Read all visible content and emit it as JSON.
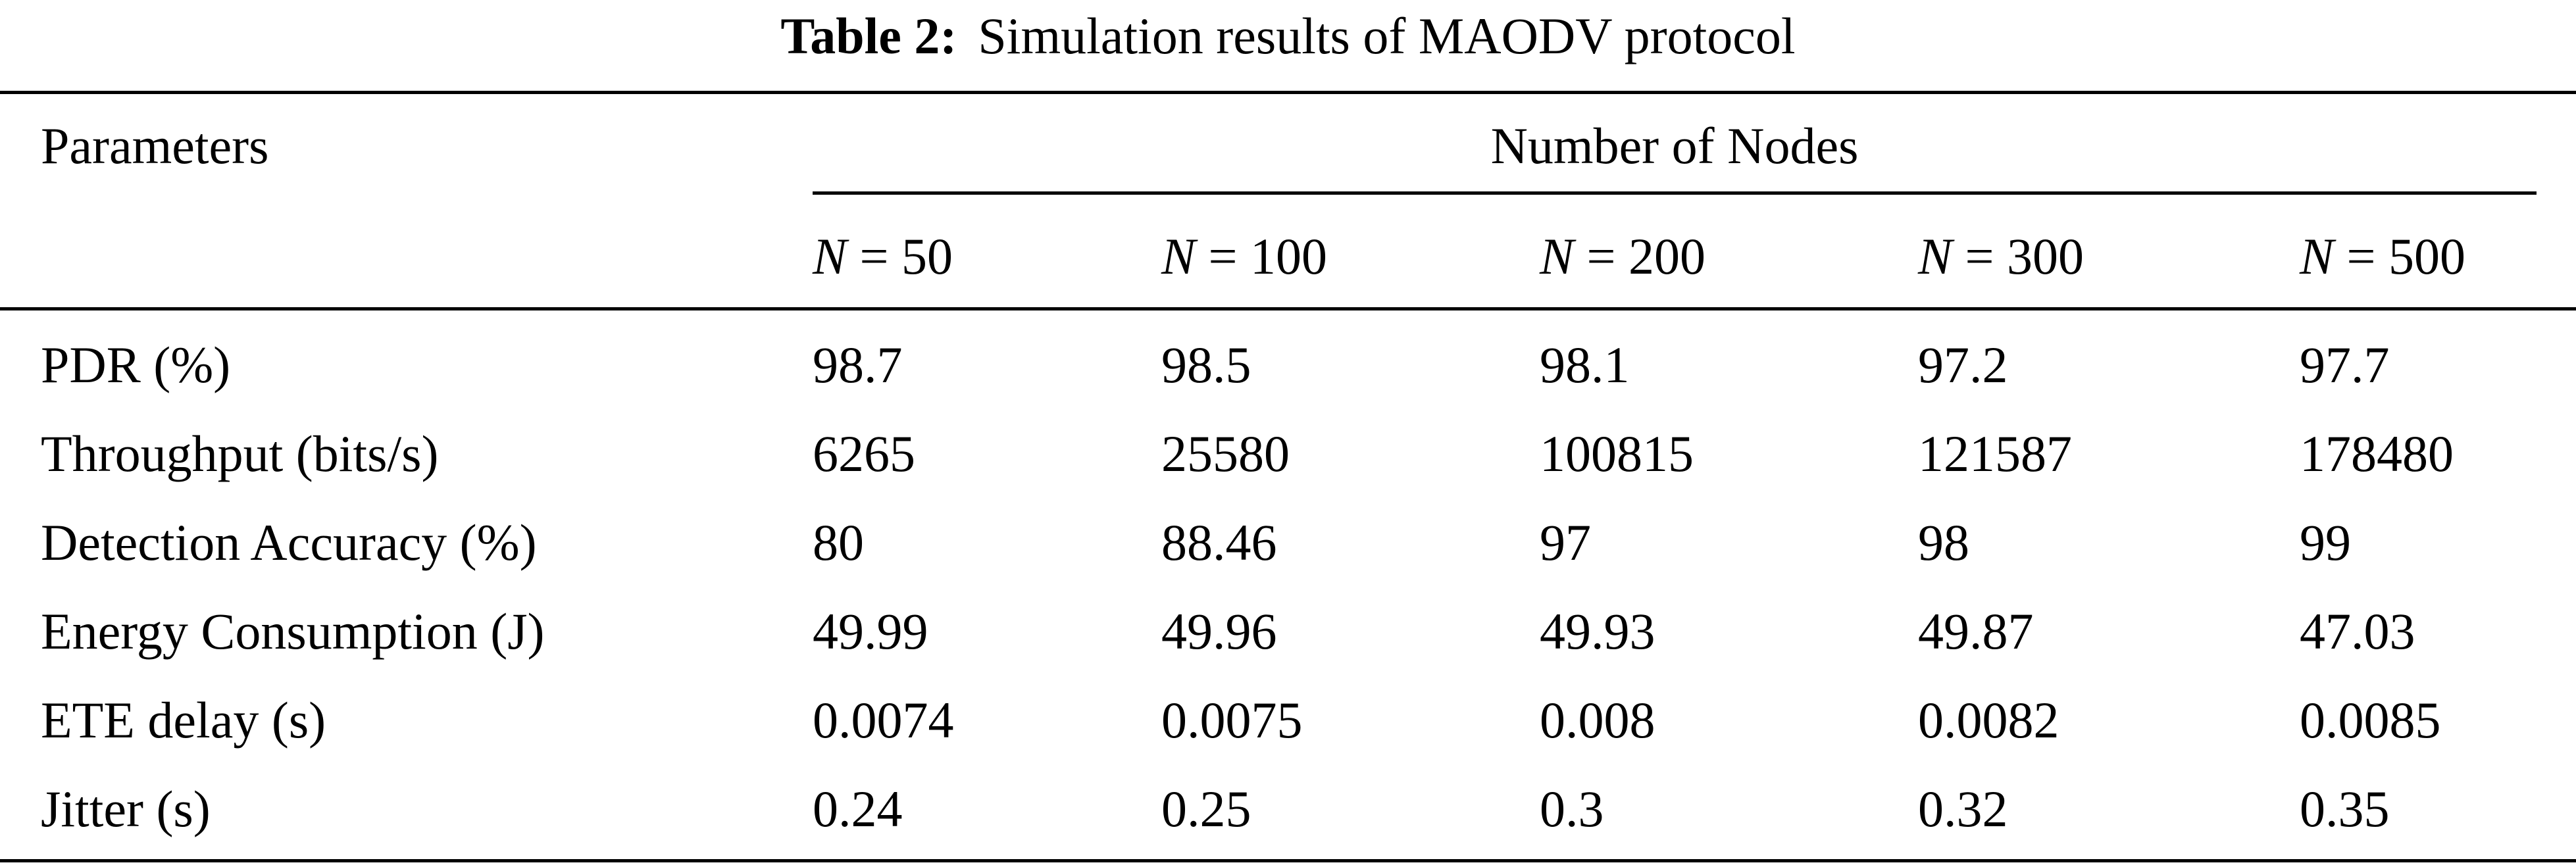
{
  "caption": {
    "label": "Table 2:",
    "text": "Simulation results of MAODV protocol"
  },
  "header": {
    "parameters": "Parameters",
    "group": "Number of Nodes",
    "node_columns": [
      {
        "var": "N",
        "value": " = 50"
      },
      {
        "var": "N",
        "value": " = 100"
      },
      {
        "var": "N",
        "value": " = 200"
      },
      {
        "var": "N",
        "value": " = 300"
      },
      {
        "var": "N",
        "value": " = 500"
      }
    ]
  },
  "rows": [
    {
      "parameter": "PDR (%)",
      "values": [
        "98.7",
        "98.5",
        "98.1",
        "97.2",
        "97.7"
      ]
    },
    {
      "parameter": "Throughput (bits/s)",
      "values": [
        "6265",
        "25580",
        "100815",
        "121587",
        "178480"
      ]
    },
    {
      "parameter": "Detection Accuracy (%)",
      "values": [
        "80",
        "88.46",
        "97",
        "98",
        "99"
      ]
    },
    {
      "parameter": "Energy Consumption (J)",
      "values": [
        "49.99",
        "49.96",
        "49.93",
        "49.87",
        "47.03"
      ]
    },
    {
      "parameter": "ETE delay (s)",
      "values": [
        "0.0074",
        "0.0075",
        "0.008",
        "0.0082",
        "0.0085"
      ]
    },
    {
      "parameter": "Jitter (s)",
      "values": [
        "0.24",
        "0.25",
        "0.3",
        "0.32",
        "0.35"
      ]
    }
  ]
}
